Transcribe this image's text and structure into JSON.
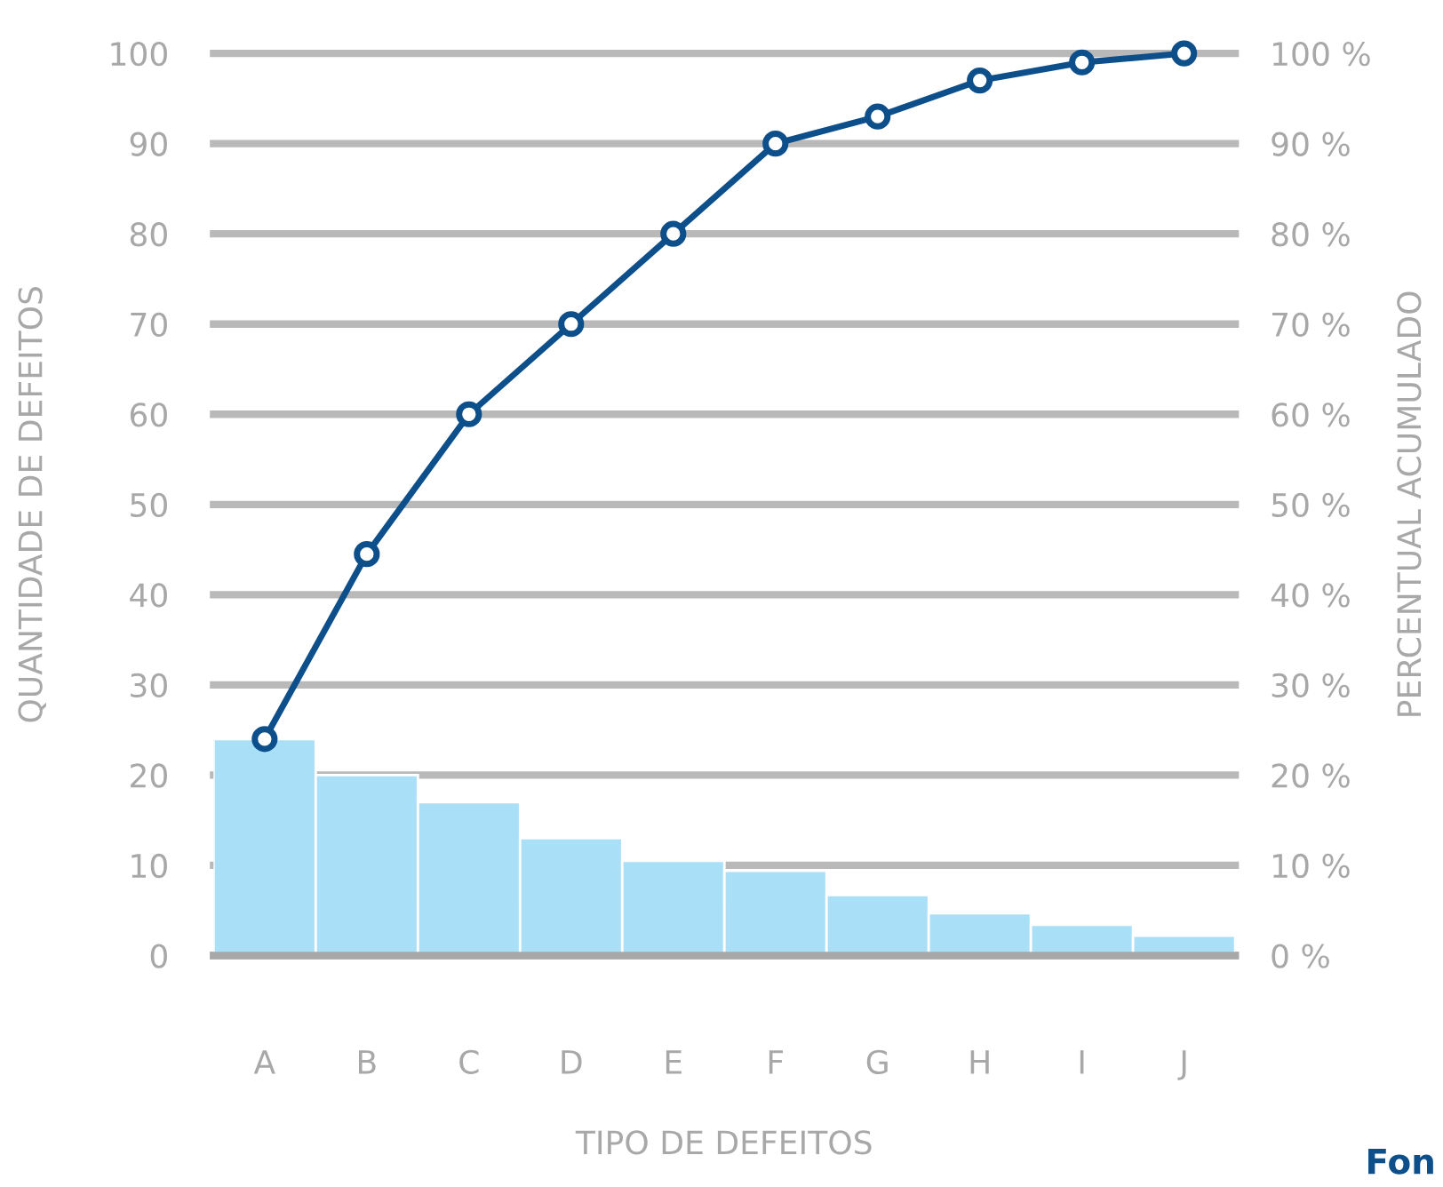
{
  "chart_data": {
    "type": "bar",
    "xlabel": "TIPO DE DEFEITOS",
    "ylabel": "QUANTIDADE DE DEFEITOS",
    "y2label": "PERCENTUAL ACUMULADO",
    "categories": [
      "A",
      "B",
      "C",
      "D",
      "E",
      "F",
      "G",
      "H",
      "I",
      "J"
    ],
    "series": [
      {
        "color": "#aadff8",
        "values": [
          24,
          20,
          17,
          13,
          10.5,
          9.4,
          6.7,
          4.7,
          3.4,
          2.2
        ]
      },
      {
        "type": "line",
        "color": "#0d4f8b",
        "marker": "circle",
        "line_style": "solid",
        "values": [
          24,
          44.5,
          60,
          70,
          80,
          90,
          93,
          97,
          99,
          100
        ]
      }
    ],
    "ylim": [
      0,
      100
    ],
    "yticks": [
      0,
      10,
      20,
      30,
      40,
      50,
      60,
      70,
      80,
      90,
      100
    ],
    "y2lim": [
      0,
      100
    ],
    "y2ticks": [
      {
        "value": 0,
        "label": "0 %"
      },
      {
        "value": 10,
        "label": "10 %"
      },
      {
        "value": 20,
        "label": "20 %"
      },
      {
        "value": 30,
        "label": "30 %"
      },
      {
        "value": 40,
        "label": "40 %"
      },
      {
        "value": 50,
        "label": "50 %"
      },
      {
        "value": 60,
        "label": "60 %"
      },
      {
        "value": 70,
        "label": "70 %"
      },
      {
        "value": 80,
        "label": "80 %"
      },
      {
        "value": 90,
        "label": "90 %"
      },
      {
        "value": 100,
        "label": "100 %"
      }
    ],
    "grid": "y",
    "annotations": [
      "Fon"
    ]
  }
}
